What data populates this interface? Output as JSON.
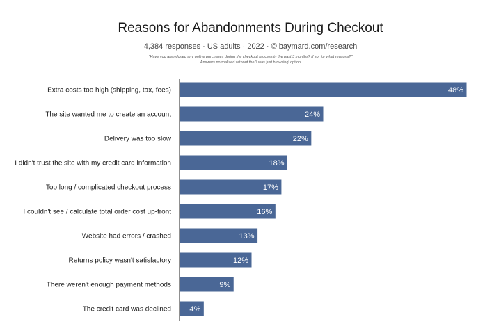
{
  "header": {
    "title": "Reasons for Abandonments During Checkout",
    "subtitle": "4,384 responses · US adults · 2022 · © baymard.com/research",
    "question": "\"Have you abandoned any online purchases during the checkout process in the past 3 months? If so, for what reasons?\"",
    "normalization": "Answers normalized without the 'I was just browsing' option"
  },
  "colors": {
    "bar": "#4a6796",
    "label_on_bar": "#ffffff",
    "axis": "#222222"
  },
  "chart_data": {
    "type": "bar",
    "orientation": "horizontal",
    "title": "Reasons for Abandonments During Checkout",
    "xlabel": "",
    "ylabel": "",
    "xlim": [
      0,
      48
    ],
    "grid": false,
    "categories": [
      "Extra costs too high (shipping, tax, fees)",
      "The site wanted me to create an account",
      "Delivery was too slow",
      "I didn't trust the site with my credit card information",
      "Too long / complicated checkout process",
      "I couldn't see / calculate total order cost up-front",
      "Website had errors / crashed",
      "Returns policy wasn't satisfactory",
      "There weren't enough payment methods",
      "The credit card was declined"
    ],
    "values": [
      48,
      24,
      22,
      18,
      17,
      16,
      13,
      12,
      9,
      4
    ],
    "value_labels": [
      "48%",
      "24%",
      "22%",
      "18%",
      "17%",
      "16%",
      "13%",
      "12%",
      "9%",
      "4%"
    ]
  }
}
